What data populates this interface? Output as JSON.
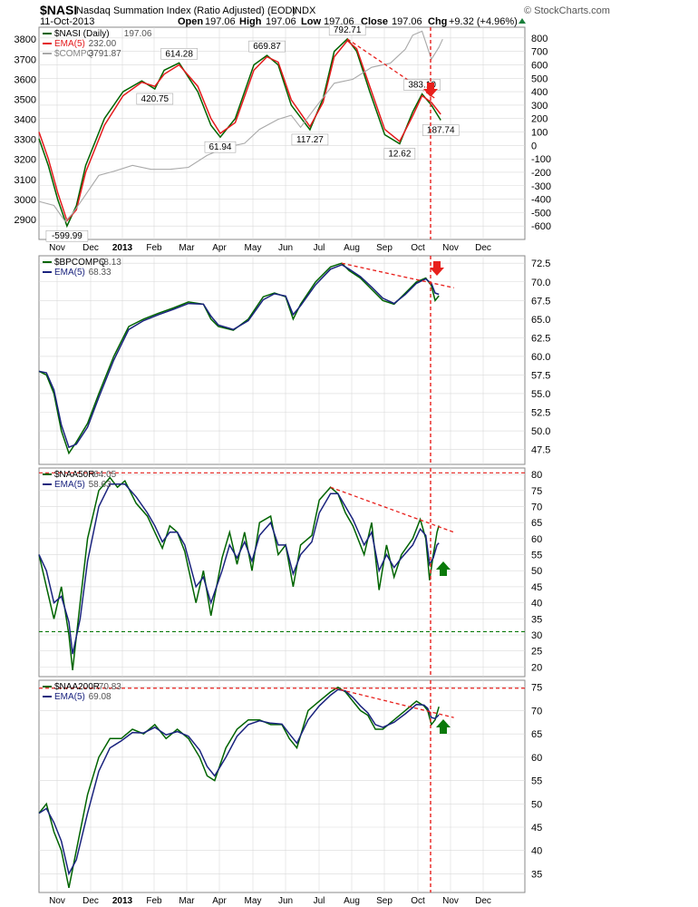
{
  "header": {
    "symbol": "$NASI",
    "description": "Nasdaq Summation Index (Ratio Adjusted) (EOD)",
    "exchange": "INDX",
    "date": "11-Oct-2013",
    "open_label": "Open",
    "open": "197.06",
    "high_label": "High",
    "high": "197.06",
    "low_label": "Low",
    "low": "197.06",
    "close_label": "Close",
    "close": "197.06",
    "chg_label": "Chg",
    "chg": "+9.32 (+4.96%)",
    "watermark": "© StockCharts.com"
  },
  "x_axis_labels": [
    "Nov",
    "Dec",
    "2013",
    "Feb",
    "Mar",
    "Apr",
    "May",
    "Jun",
    "Jul",
    "Aug",
    "Sep",
    "Oct",
    "Nov",
    "Dec"
  ],
  "colors": {
    "green_line": "#006400",
    "red_line": "#e41a1c",
    "blue_line": "#1a237e",
    "gray_line": "#a9a9a9",
    "annotation_red": "#e8201c",
    "annotation_green": "#0a7a0a",
    "grid": "#d9d9d9"
  },
  "chart_data": [
    {
      "type": "line",
      "panel": "nasi",
      "legend": [
        {
          "name": "$NASI (Daily)",
          "value": "197.06",
          "color": "green"
        },
        {
          "name": "EMA(5)",
          "value": "232.00",
          "color": "red"
        },
        {
          "name": "$COMPQ",
          "value": "3791.87",
          "color": "gray"
        }
      ],
      "left_axis": {
        "ylim": [
          2800,
          3860
        ],
        "ticks": [
          "3800",
          "3700",
          "3600",
          "3500",
          "3400",
          "3300",
          "3200",
          "3100",
          "3000",
          "2900"
        ]
      },
      "right_axis": {
        "ylim": [
          -700,
          880
        ],
        "ticks": [
          "800",
          "700",
          "600",
          "500",
          "400",
          "300",
          "200",
          "100",
          "0",
          "-100",
          "-200",
          "-300",
          "-400",
          "-500",
          "-600"
        ]
      },
      "annotations": [
        "792.71",
        "614.28",
        "669.87",
        "420.75",
        "383.10",
        "61.94",
        "117.27",
        "12.62",
        "187.74",
        "-599.99"
      ],
      "series": [
        {
          "name": "$NASI (Daily)",
          "axis": "right",
          "x": [
            0,
            5,
            10,
            15,
            20,
            25,
            35,
            45,
            55,
            62,
            67,
            75,
            85,
            92,
            97,
            105,
            115,
            122,
            128,
            135,
            145,
            152,
            158,
            165,
            170,
            177,
            185,
            193,
            200,
            205,
            210,
            215
          ],
          "values": [
            50,
            -150,
            -400,
            -599.99,
            -450,
            -150,
            200,
            400,
            480,
            420.75,
            560,
            614.28,
            400,
            150,
            61.94,
            200,
            600,
            669.87,
            600,
            300,
            117.27,
            350,
            700,
            792.71,
            700,
            400,
            80,
            12.62,
            250,
            383.1,
            300,
            187.74
          ]
        },
        {
          "name": "EMA(5)",
          "axis": "right",
          "x": [
            0,
            5,
            10,
            15,
            20,
            25,
            35,
            45,
            55,
            62,
            67,
            75,
            85,
            92,
            97,
            105,
            115,
            122,
            128,
            135,
            145,
            152,
            158,
            165,
            170,
            177,
            185,
            193,
            200,
            205,
            210,
            215
          ],
          "values": [
            100,
            -100,
            -350,
            -560,
            -480,
            -200,
            150,
            370,
            470,
            440,
            530,
            600,
            440,
            200,
            90,
            170,
            560,
            660,
            620,
            340,
            140,
            320,
            660,
            780,
            720,
            440,
            120,
            30,
            220,
            370,
            320,
            232
          ]
        },
        {
          "name": "$COMPQ",
          "axis": "left",
          "x": [
            0,
            8,
            14,
            18,
            24,
            32,
            40,
            50,
            60,
            70,
            80,
            90,
            100,
            110,
            118,
            128,
            135,
            140,
            148,
            158,
            168,
            178,
            188,
            196,
            200,
            205,
            210,
            214,
            216
          ],
          "values": [
            2990,
            2970,
            2890,
            2930,
            3010,
            3120,
            3140,
            3170,
            3150,
            3150,
            3160,
            3220,
            3260,
            3280,
            3350,
            3400,
            3420,
            3360,
            3460,
            3580,
            3600,
            3660,
            3680,
            3750,
            3820,
            3840,
            3700,
            3760,
            3800
          ]
        }
      ],
      "trendlines": [
        {
          "from": [
            165,
            792.71
          ],
          "to": [
            212,
            350
          ]
        }
      ]
    },
    {
      "type": "line",
      "panel": "bpcompq",
      "legend": [
        {
          "name": "$BPCOMPQ",
          "value": "68.13",
          "color": "green"
        },
        {
          "name": "EMA(5)",
          "value": "68.33",
          "color": "blue"
        }
      ],
      "right_axis": {
        "ylim": [
          45.5,
          73.5
        ],
        "ticks": [
          "72.5",
          "70.0",
          "67.5",
          "65.0",
          "62.5",
          "60.0",
          "57.5",
          "55.0",
          "52.5",
          "50.0",
          "47.5"
        ]
      },
      "series": [
        {
          "name": "$BPCOMPQ",
          "x": [
            0,
            4,
            8,
            12,
            16,
            20,
            26,
            32,
            40,
            48,
            56,
            64,
            72,
            80,
            88,
            92,
            96,
            104,
            112,
            120,
            126,
            132,
            136,
            140,
            148,
            156,
            162,
            166,
            172,
            178,
            184,
            190,
            196,
            202,
            207,
            210,
            212,
            214
          ],
          "values": [
            58,
            57.5,
            55,
            50,
            47,
            48.5,
            51,
            55,
            60,
            64,
            65,
            65.8,
            66.5,
            67.3,
            67,
            65,
            64,
            63.5,
            65,
            68,
            68.5,
            68,
            65,
            67,
            70,
            72,
            72.5,
            71.5,
            70.5,
            69,
            67.5,
            67,
            68.5,
            70,
            70.5,
            69.5,
            67.5,
            68.13
          ]
        },
        {
          "name": "EMA(5)",
          "x": [
            0,
            4,
            8,
            12,
            16,
            20,
            26,
            32,
            40,
            48,
            56,
            64,
            72,
            80,
            88,
            92,
            96,
            104,
            112,
            120,
            126,
            132,
            136,
            140,
            148,
            156,
            162,
            166,
            172,
            178,
            184,
            190,
            196,
            202,
            207,
            210,
            212,
            214
          ],
          "values": [
            58,
            57.8,
            55.5,
            50.8,
            47.8,
            48.2,
            50.5,
            54.5,
            59.5,
            63.6,
            64.8,
            65.6,
            66.3,
            67.1,
            67,
            65.4,
            64.2,
            63.6,
            64.8,
            67.6,
            68.4,
            68.1,
            65.6,
            66.8,
            69.6,
            71.7,
            72.3,
            71.7,
            70.7,
            69.3,
            67.8,
            67.1,
            68.3,
            69.8,
            70.4,
            69.8,
            68.5,
            68.33
          ]
        }
      ],
      "trendlines": [
        {
          "from": [
            162,
            72.5
          ],
          "to": [
            222,
            69.2
          ]
        }
      ]
    },
    {
      "type": "line",
      "panel": "naa50r",
      "legend": [
        {
          "name": "$NAA50R",
          "value": "64.05",
          "color": "green"
        },
        {
          "name": "EMA(5)",
          "value": "58.63",
          "color": "blue"
        }
      ],
      "right_axis": {
        "ylim": [
          17,
          82
        ],
        "ticks": [
          "80",
          "75",
          "70",
          "65",
          "60",
          "55",
          "50",
          "45",
          "40",
          "35",
          "30",
          "25",
          "20"
        ]
      },
      "series": [
        {
          "name": "$NAA50R",
          "x": [
            0,
            4,
            8,
            12,
            16,
            18,
            22,
            26,
            32,
            38,
            42,
            46,
            52,
            58,
            62,
            66,
            70,
            74,
            78,
            84,
            88,
            92,
            98,
            102,
            106,
            110,
            114,
            118,
            124,
            128,
            132,
            136,
            140,
            146,
            150,
            156,
            160,
            164,
            168,
            174,
            178,
            182,
            186,
            190,
            194,
            200,
            204,
            207,
            209,
            211,
            213,
            214
          ],
          "values": [
            55,
            45,
            35,
            45,
            30,
            19,
            40,
            60,
            75,
            79,
            76,
            78,
            71,
            67,
            62,
            57,
            64,
            62,
            56,
            40,
            50,
            36,
            54,
            62,
            52,
            62,
            50,
            65,
            67,
            55,
            58,
            45,
            58,
            61,
            72,
            76,
            74,
            68,
            64,
            55,
            65,
            44,
            58,
            48,
            55,
            60,
            66,
            60,
            47,
            55,
            62,
            64.05
          ]
        },
        {
          "name": "EMA(5)",
          "x": [
            0,
            4,
            8,
            12,
            16,
            18,
            22,
            26,
            32,
            38,
            42,
            46,
            52,
            58,
            62,
            66,
            70,
            74,
            78,
            84,
            88,
            92,
            98,
            102,
            106,
            110,
            114,
            118,
            124,
            128,
            132,
            136,
            140,
            146,
            150,
            156,
            160,
            164,
            168,
            174,
            178,
            182,
            186,
            190,
            194,
            200,
            204,
            207,
            209,
            211,
            213,
            214
          ],
          "values": [
            55,
            50,
            40,
            42,
            34,
            24,
            35,
            53,
            70,
            77,
            77,
            77,
            73,
            68,
            64,
            59,
            62,
            62,
            58,
            45,
            48,
            40,
            50,
            58,
            54,
            59,
            53,
            61,
            65,
            58,
            58,
            49,
            55,
            59,
            68,
            74,
            74,
            70,
            66,
            58,
            62,
            50,
            55,
            51,
            54,
            58,
            63,
            61,
            52,
            54,
            58,
            58.63
          ]
        }
      ],
      "reference_lines": [
        {
          "value": 80.5,
          "color": "red"
        },
        {
          "value": 31,
          "color": "green"
        }
      ],
      "trendlines": [
        {
          "from": [
            156,
            76
          ],
          "to": [
            222,
            62
          ]
        }
      ]
    },
    {
      "type": "line",
      "panel": "naa200r",
      "legend": [
        {
          "name": "$NAA200R",
          "value": "70.83",
          "color": "green"
        },
        {
          "name": "EMA(5)",
          "value": "69.08",
          "color": "blue"
        }
      ],
      "right_axis": {
        "ylim": [
          31,
          76.5
        ],
        "ticks": [
          "75",
          "70",
          "65",
          "60",
          "55",
          "50",
          "45",
          "40",
          "35"
        ]
      },
      "series": [
        {
          "name": "$NAA200R",
          "x": [
            0,
            4,
            8,
            12,
            16,
            20,
            26,
            32,
            38,
            44,
            50,
            56,
            62,
            68,
            74,
            80,
            86,
            90,
            94,
            100,
            106,
            112,
            118,
            124,
            130,
            134,
            138,
            144,
            150,
            156,
            160,
            164,
            168,
            172,
            176,
            180,
            184,
            190,
            196,
            202,
            206,
            208,
            210,
            212,
            214
          ],
          "values": [
            48,
            50,
            44,
            40,
            32,
            40,
            52,
            60,
            64,
            64,
            66,
            65,
            67,
            64,
            66,
            64,
            60,
            56,
            55,
            62,
            66,
            68,
            68,
            67,
            67,
            64,
            62,
            70,
            72,
            74,
            75,
            74,
            72,
            70,
            69,
            66,
            66,
            68,
            70,
            72,
            71,
            70,
            67,
            68,
            70.83
          ]
        },
        {
          "name": "EMA(5)",
          "x": [
            0,
            4,
            8,
            12,
            16,
            20,
            26,
            32,
            38,
            44,
            50,
            56,
            62,
            68,
            74,
            80,
            86,
            90,
            94,
            100,
            106,
            112,
            118,
            124,
            130,
            134,
            138,
            144,
            150,
            156,
            160,
            164,
            168,
            172,
            176,
            180,
            184,
            190,
            196,
            202,
            206,
            208,
            210,
            212,
            214
          ],
          "values": [
            48,
            49,
            46,
            42,
            35,
            38,
            48,
            57,
            62,
            63.5,
            65.3,
            65.2,
            66.4,
            64.8,
            65.5,
            64.5,
            61.5,
            58,
            56,
            60,
            64.5,
            67,
            67.8,
            67.3,
            67.1,
            65,
            63,
            68,
            71,
            73.3,
            74.5,
            74.2,
            72.8,
            71,
            69.5,
            67,
            66.4,
            67.5,
            69.3,
            71.3,
            71.2,
            70.5,
            68.5,
            68.3,
            69.08
          ]
        }
      ],
      "reference_lines": [
        {
          "value": 74.8,
          "color": "red"
        }
      ],
      "trendlines": [
        {
          "from": [
            158,
            74.8
          ],
          "to": [
            222,
            68.5
          ]
        }
      ]
    }
  ]
}
